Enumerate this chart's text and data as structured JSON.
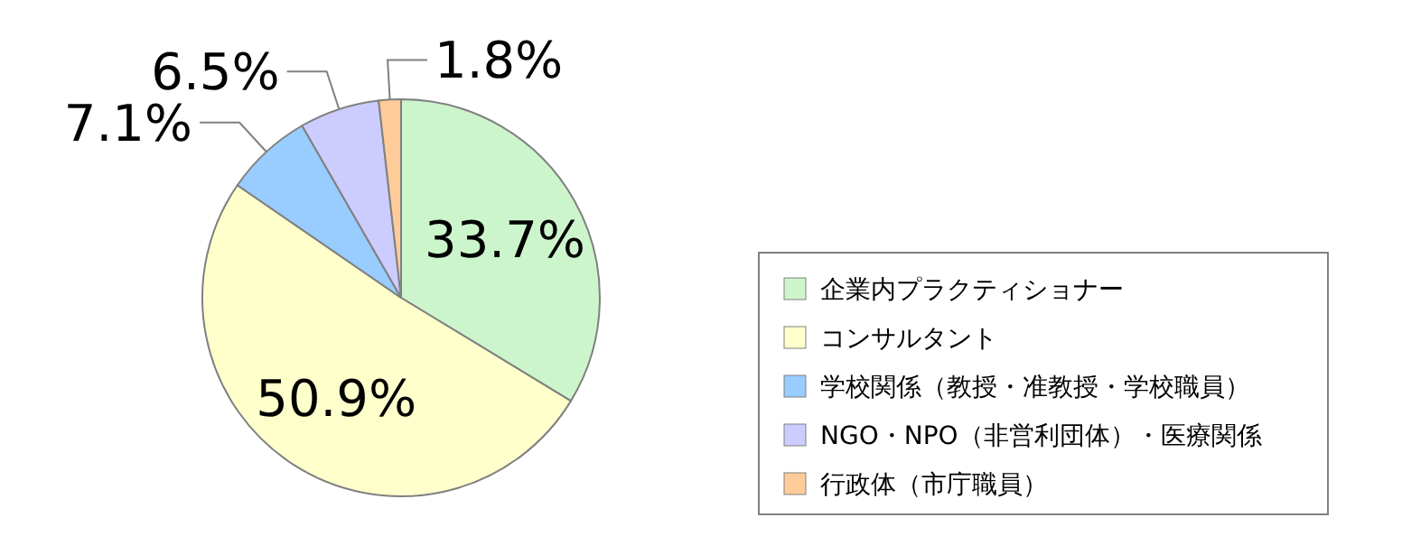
{
  "chart_data": {
    "type": "pie",
    "categories": [
      "企業内プラクティショナー",
      "コンサルタント",
      "学校関係（教授・准教授・学校職員）",
      "NGO・NPO（非営利団体）・医療関係",
      "行政体（市庁職員）"
    ],
    "values": [
      33.7,
      50.9,
      7.1,
      6.5,
      1.8
    ],
    "value_labels": [
      "33.7%",
      "50.9%",
      "7.1%",
      "6.5%",
      "1.8%"
    ],
    "colors": [
      "#ccf5cc",
      "#ffffcc",
      "#99ccff",
      "#ccccff",
      "#ffcc99"
    ],
    "legend": "right"
  }
}
